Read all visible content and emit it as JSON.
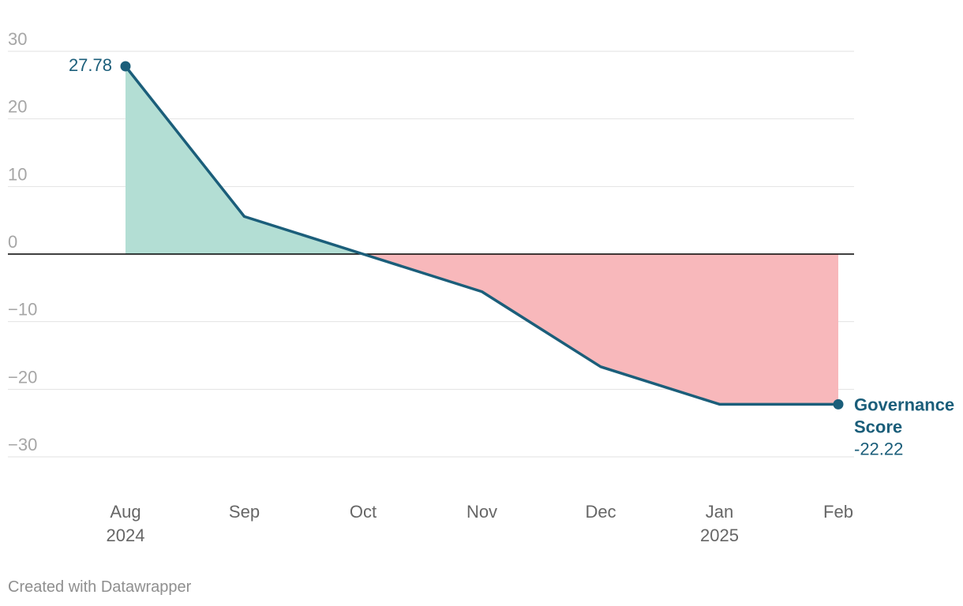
{
  "chart_data": {
    "type": "area",
    "x": [
      "2024-08",
      "2024-09",
      "2024-10",
      "2024-11",
      "2024-12",
      "2025-01",
      "2025-02"
    ],
    "x_tick_labels": [
      {
        "month": "Aug",
        "year": "2024"
      },
      {
        "month": "Sep",
        "year": ""
      },
      {
        "month": "Oct",
        "year": ""
      },
      {
        "month": "Nov",
        "year": ""
      },
      {
        "month": "Dec",
        "year": ""
      },
      {
        "month": "Jan",
        "year": "2025"
      },
      {
        "month": "Feb",
        "year": ""
      }
    ],
    "series": [
      {
        "name": "Governance Score",
        "name_lines": [
          "Governance",
          "Score"
        ],
        "values": [
          27.78,
          5.56,
          0.0,
          -5.56,
          -16.67,
          -22.22,
          -22.22
        ]
      }
    ],
    "labels": {
      "first_value": "27.78",
      "last_value": "-22.22"
    },
    "ylim": [
      -30,
      30
    ],
    "y_ticks": [
      30,
      20,
      10,
      0,
      -10,
      -20,
      -30
    ],
    "y_tick_labels": [
      "30",
      "20",
      "10",
      "0",
      "−10",
      "−20",
      "−30"
    ],
    "grid": true,
    "legend": "none",
    "colors": {
      "line": "#1b5e7a",
      "positive_fill": "#b3ded4",
      "negative_fill": "#f8b8bb",
      "grid": "#e2e2e2",
      "zero_line": "#000000"
    }
  },
  "footer": {
    "credit": "Created with Datawrapper"
  }
}
